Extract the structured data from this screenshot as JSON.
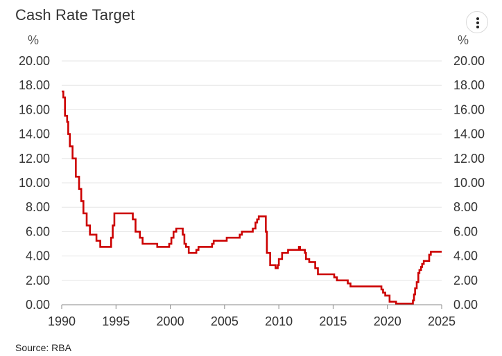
{
  "title": "Cash Rate Target",
  "menu": {
    "icon": "vertical-ellipsis-icon"
  },
  "source": "Source: RBA",
  "chart_data": {
    "type": "line",
    "title": "Cash Rate Target",
    "xlabel": "",
    "ylabel": "%",
    "y_unit_left": "%",
    "y_unit_right": "%",
    "ylim": [
      0,
      20
    ],
    "xlim": [
      1990,
      2025
    ],
    "y_ticks": [
      "0.00",
      "2.00",
      "4.00",
      "6.00",
      "8.00",
      "10.00",
      "12.00",
      "14.00",
      "16.00",
      "18.00",
      "20.00"
    ],
    "x_ticks": [
      "1990",
      "1995",
      "2000",
      "2005",
      "2010",
      "2015",
      "2020",
      "2025"
    ],
    "grid": "horizontal",
    "line_color": "#cc0000",
    "series": [
      {
        "step": true,
        "x": [
          1990.0,
          1990.15,
          1990.3,
          1990.5,
          1990.6,
          1990.75,
          1991.0,
          1991.3,
          1991.6,
          1991.8,
          1992.0,
          1992.3,
          1992.6,
          1993.2,
          1993.55,
          1994.55,
          1994.7,
          1994.85,
          1995.3,
          1996.55,
          1996.8,
          1997.2,
          1997.45,
          1997.6,
          1998.8,
          1999.9,
          2000.1,
          2000.3,
          2000.55,
          2001.15,
          2001.3,
          2001.45,
          2001.7,
          2002.4,
          2002.6,
          2003.85,
          2004.0,
          2005.2,
          2006.4,
          2006.6,
          2007.6,
          2007.85,
          2008.0,
          2008.15,
          2008.6,
          2008.8,
          2008.9,
          2009.2,
          2009.7,
          2009.9,
          2010.0,
          2010.3,
          2010.85,
          2011.85,
          2011.95,
          2012.4,
          2012.5,
          2012.8,
          2013.35,
          2013.6,
          2015.1,
          2015.35,
          2016.35,
          2016.6,
          2019.45,
          2019.6,
          2019.8,
          2020.2,
          2020.8,
          2022.35,
          2022.45,
          2022.55,
          2022.7,
          2022.85,
          2022.95,
          2023.1,
          2023.2,
          2023.35,
          2023.85,
          2024.0,
          2025.0
        ],
        "values": [
          17.5,
          17.0,
          15.5,
          15.0,
          14.0,
          13.0,
          12.0,
          10.5,
          9.5,
          8.5,
          7.5,
          6.5,
          5.75,
          5.25,
          4.75,
          5.5,
          6.5,
          7.5,
          7.5,
          7.0,
          6.0,
          5.5,
          5.0,
          5.0,
          4.75,
          5.0,
          5.5,
          6.0,
          6.25,
          5.75,
          5.0,
          4.75,
          4.25,
          4.5,
          4.75,
          5.0,
          5.25,
          5.5,
          5.75,
          6.0,
          6.25,
          6.75,
          7.0,
          7.25,
          7.25,
          6.0,
          4.25,
          3.25,
          3.0,
          3.25,
          3.75,
          4.25,
          4.5,
          4.75,
          4.5,
          4.25,
          3.75,
          3.5,
          3.0,
          2.5,
          2.25,
          2.0,
          1.75,
          1.5,
          1.25,
          1.0,
          0.75,
          0.25,
          0.1,
          0.35,
          0.85,
          1.35,
          1.85,
          2.6,
          2.85,
          3.1,
          3.35,
          3.6,
          4.1,
          4.35,
          4.35
        ]
      }
    ]
  }
}
